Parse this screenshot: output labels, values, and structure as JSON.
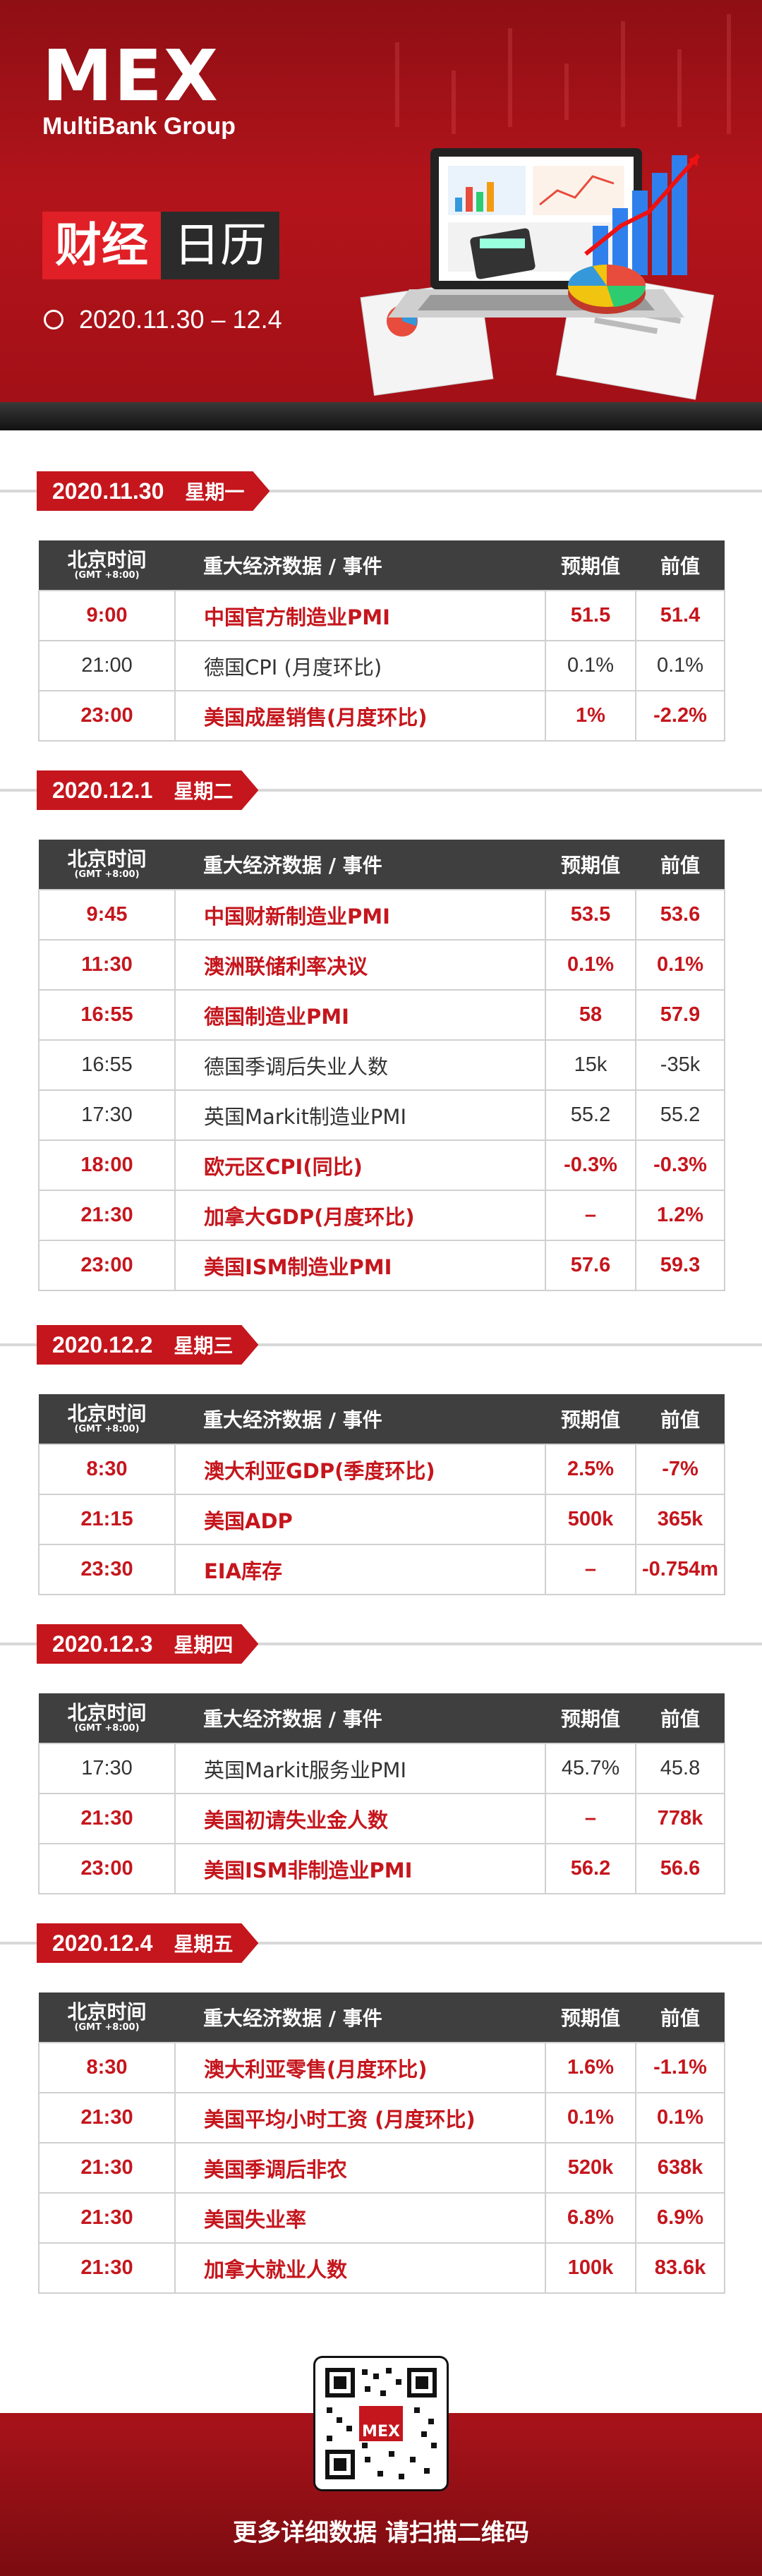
{
  "header": {
    "logo_mark": "MEX",
    "logo_sub": "MultiBank Group",
    "title_red": "财经",
    "title_dark": "日历",
    "date_range": "2020.11.30 – 12.4"
  },
  "table_header": {
    "time": "北京时间",
    "gmt": "(GMT +8:00)",
    "event": "重大经济数据 / 事件",
    "forecast": "预期值",
    "previous": "前值"
  },
  "days": [
    {
      "date": "2020.11.30",
      "weekday": "星期一",
      "rows": [
        {
          "time": "9:00",
          "event": "中国官方制造业PMI",
          "forecast": "51.5",
          "previous": "51.4",
          "highlight": true
        },
        {
          "time": "21:00",
          "event": "德国CPI (月度环比)",
          "forecast": "0.1%",
          "previous": "0.1%",
          "highlight": false
        },
        {
          "time": "23:00",
          "event": "美国成屋销售(月度环比)",
          "forecast": "1%",
          "previous": "-2.2%",
          "highlight": true
        }
      ]
    },
    {
      "date": "2020.12.1",
      "weekday": "星期二",
      "rows": [
        {
          "time": "9:45",
          "event": "中国财新制造业PMI",
          "forecast": "53.5",
          "previous": "53.6",
          "highlight": true
        },
        {
          "time": "11:30",
          "event": "澳洲联储利率决议",
          "forecast": "0.1%",
          "previous": "0.1%",
          "highlight": true
        },
        {
          "time": "16:55",
          "event": "德国制造业PMI",
          "forecast": "58",
          "previous": "57.9",
          "highlight": true
        },
        {
          "time": "16:55",
          "event": "德国季调后失业人数",
          "forecast": "15k",
          "previous": "-35k",
          "highlight": false
        },
        {
          "time": "17:30",
          "event": "英国Markit制造业PMI",
          "forecast": "55.2",
          "previous": "55.2",
          "highlight": false
        },
        {
          "time": "18:00",
          "event": "欧元区CPI(同比)",
          "forecast": "-0.3%",
          "previous": "-0.3%",
          "highlight": true
        },
        {
          "time": "21:30",
          "event": "加拿大GDP(月度环比)",
          "forecast": "–",
          "previous": "1.2%",
          "highlight": true
        },
        {
          "time": "23:00",
          "event": "美国ISM制造业PMI",
          "forecast": "57.6",
          "previous": "59.3",
          "highlight": true
        }
      ]
    },
    {
      "date": "2020.12.2",
      "weekday": "星期三",
      "rows": [
        {
          "time": "8:30",
          "event": "澳大利亚GDP(季度环比)",
          "forecast": "2.5%",
          "previous": "-7%",
          "highlight": true
        },
        {
          "time": "21:15",
          "event": "美国ADP",
          "forecast": "500k",
          "previous": "365k",
          "highlight": true
        },
        {
          "time": "23:30",
          "event": "EIA库存",
          "forecast": "–",
          "previous": "-0.754m",
          "highlight": true
        }
      ]
    },
    {
      "date": "2020.12.3",
      "weekday": "星期四",
      "rows": [
        {
          "time": "17:30",
          "event": "英国Markit服务业PMI",
          "forecast": "45.7%",
          "previous": "45.8",
          "highlight": false
        },
        {
          "time": "21:30",
          "event": "美国初请失业金人数",
          "forecast": "–",
          "previous": "778k",
          "highlight": true
        },
        {
          "time": "23:00",
          "event": "美国ISM非制造业PMI",
          "forecast": "56.2",
          "previous": "56.6",
          "highlight": true
        }
      ]
    },
    {
      "date": "2020.12.4",
      "weekday": "星期五",
      "rows": [
        {
          "time": "8:30",
          "event": "澳大利亚零售(月度环比)",
          "forecast": "1.6%",
          "previous": "-1.1%",
          "highlight": true
        },
        {
          "time": "21:30",
          "event": "美国平均小时工资 (月度环比)",
          "forecast": "0.1%",
          "previous": "0.1%",
          "highlight": true
        },
        {
          "time": "21:30",
          "event": "美国季调后非农",
          "forecast": "520k",
          "previous": "638k",
          "highlight": true
        },
        {
          "time": "21:30",
          "event": "美国失业率",
          "forecast": "6.8%",
          "previous": "6.9%",
          "highlight": true
        },
        {
          "time": "21:30",
          "event": "加拿大就业人数",
          "forecast": "100k",
          "previous": "83.6k",
          "highlight": true
        }
      ]
    }
  ],
  "footer": {
    "qr_logo": "MEX",
    "cta": "更多详细数据 请扫描二维码"
  },
  "colors": {
    "brand_red": "#c5161d",
    "header_dark": "#3f3f3f"
  },
  "icons": [
    "calendar-dot-icon",
    "qr-code-icon",
    "laptop-chart-illustration"
  ]
}
